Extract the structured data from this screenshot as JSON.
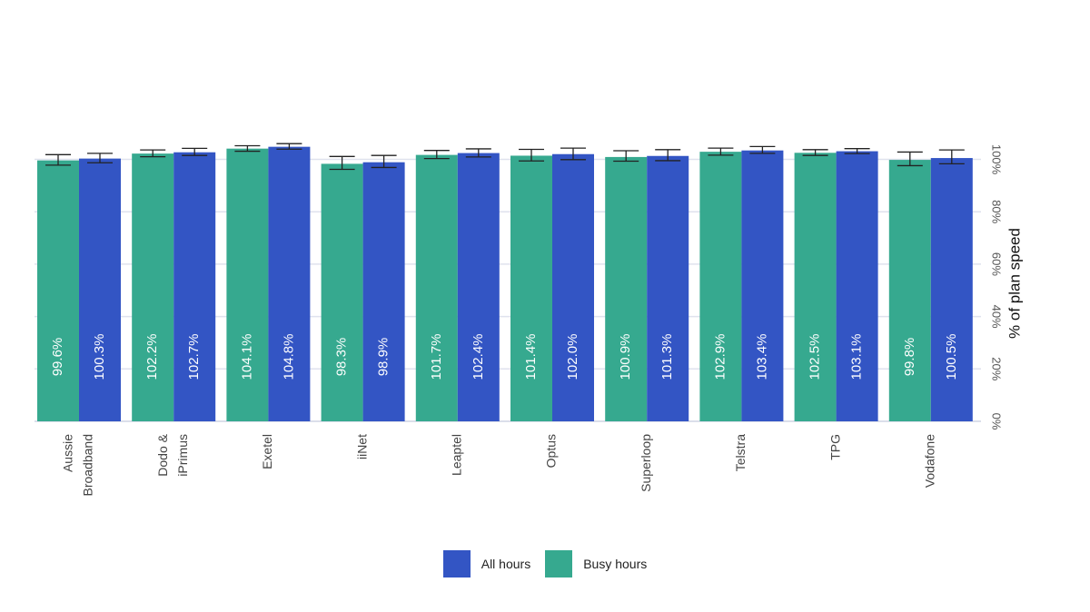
{
  "chart_data": {
    "type": "bar",
    "categories": [
      "Aussie Broadband",
      "Dodo & iPrimus",
      "Exetel",
      "iiNet",
      "Leaptel",
      "Optus",
      "Superloop",
      "Telstra",
      "TPG",
      "Vodafone"
    ],
    "category_lines": [
      [
        "Aussie",
        "Broadband"
      ],
      [
        "Dodo &",
        "iPrimus"
      ],
      [
        "Exetel"
      ],
      [
        "iiNet"
      ],
      [
        "Leaptel"
      ],
      [
        "Optus"
      ],
      [
        "Superloop"
      ],
      [
        "Telstra"
      ],
      [
        "TPG"
      ],
      [
        "Vodafone"
      ]
    ],
    "series": [
      {
        "name": "Busy hours",
        "color": "#36A98F",
        "values": [
          99.6,
          102.2,
          104.1,
          98.3,
          101.7,
          101.4,
          100.9,
          102.9,
          102.5,
          99.8
        ],
        "value_labels": [
          "99.6%",
          "102.2%",
          "104.1%",
          "98.3%",
          "101.7%",
          "101.4%",
          "100.9%",
          "102.9%",
          "102.5%",
          "99.8%"
        ],
        "error_low": [
          97.8,
          101.0,
          103.1,
          96.2,
          100.3,
          99.4,
          99.3,
          101.6,
          101.5,
          97.6
        ],
        "error_high": [
          101.8,
          103.6,
          105.2,
          101.1,
          103.4,
          103.8,
          103.3,
          104.3,
          103.7,
          102.8
        ]
      },
      {
        "name": "All hours",
        "color": "#3355C4",
        "values": [
          100.3,
          102.7,
          104.8,
          98.9,
          102.4,
          102.0,
          101.3,
          103.4,
          103.1,
          100.5
        ],
        "value_labels": [
          "100.3%",
          "102.7%",
          "104.8%",
          "98.9%",
          "102.4%",
          "102.0%",
          "101.3%",
          "103.4%",
          "103.1%",
          "100.5%"
        ],
        "error_low": [
          98.7,
          101.5,
          103.9,
          96.9,
          100.9,
          99.9,
          99.5,
          102.3,
          102.2,
          98.3
        ],
        "error_high": [
          102.3,
          104.2,
          106.0,
          101.5,
          104.0,
          104.3,
          103.7,
          104.9,
          104.1,
          103.6
        ]
      }
    ],
    "ylabel": "% of plan speed",
    "ylim": [
      0,
      105
    ],
    "yticks": [
      0,
      20,
      40,
      60,
      80,
      100
    ],
    "ytick_labels": [
      "0%",
      "20%",
      "40%",
      "60%",
      "80%",
      "100%"
    ],
    "y_axis_side": "right",
    "grid": true,
    "legend_position": "bottom",
    "legend_order": [
      "All hours",
      "Busy hours"
    ]
  }
}
